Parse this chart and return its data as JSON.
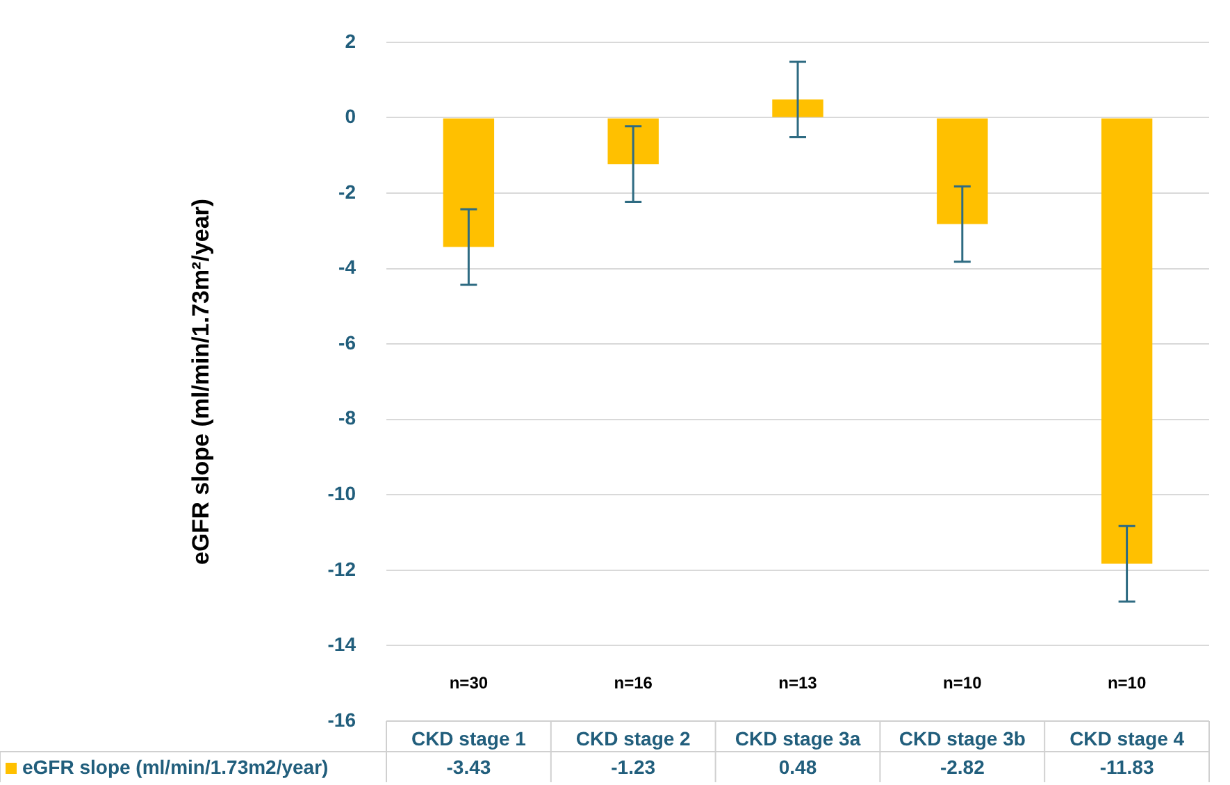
{
  "chart_data": {
    "type": "bar",
    "ylabel": "eGFR slope (ml/min/1.73m²/year)",
    "categories": [
      "CKD stage 1",
      "CKD stage 2",
      "CKD stage 3a",
      "CKD stage 3b",
      "CKD stage 4"
    ],
    "series": [
      {
        "name": "eGFR slope (ml/min/1.73m2/year)",
        "color": "#ffc000",
        "values": [
          -3.43,
          -1.23,
          0.48,
          -2.82,
          -11.83
        ],
        "errors": [
          1,
          1,
          1,
          1,
          1
        ]
      }
    ],
    "ylim": [
      -16,
      2
    ],
    "yticks": [
      -16,
      -14,
      -12,
      -10,
      -8,
      -6,
      -4,
      -2,
      0,
      2
    ],
    "grid": "y",
    "data_labels": true,
    "legend": "bottom left",
    "annotations": [
      "n=30",
      "n=16",
      "n=13",
      "n=10",
      "n=10"
    ]
  }
}
